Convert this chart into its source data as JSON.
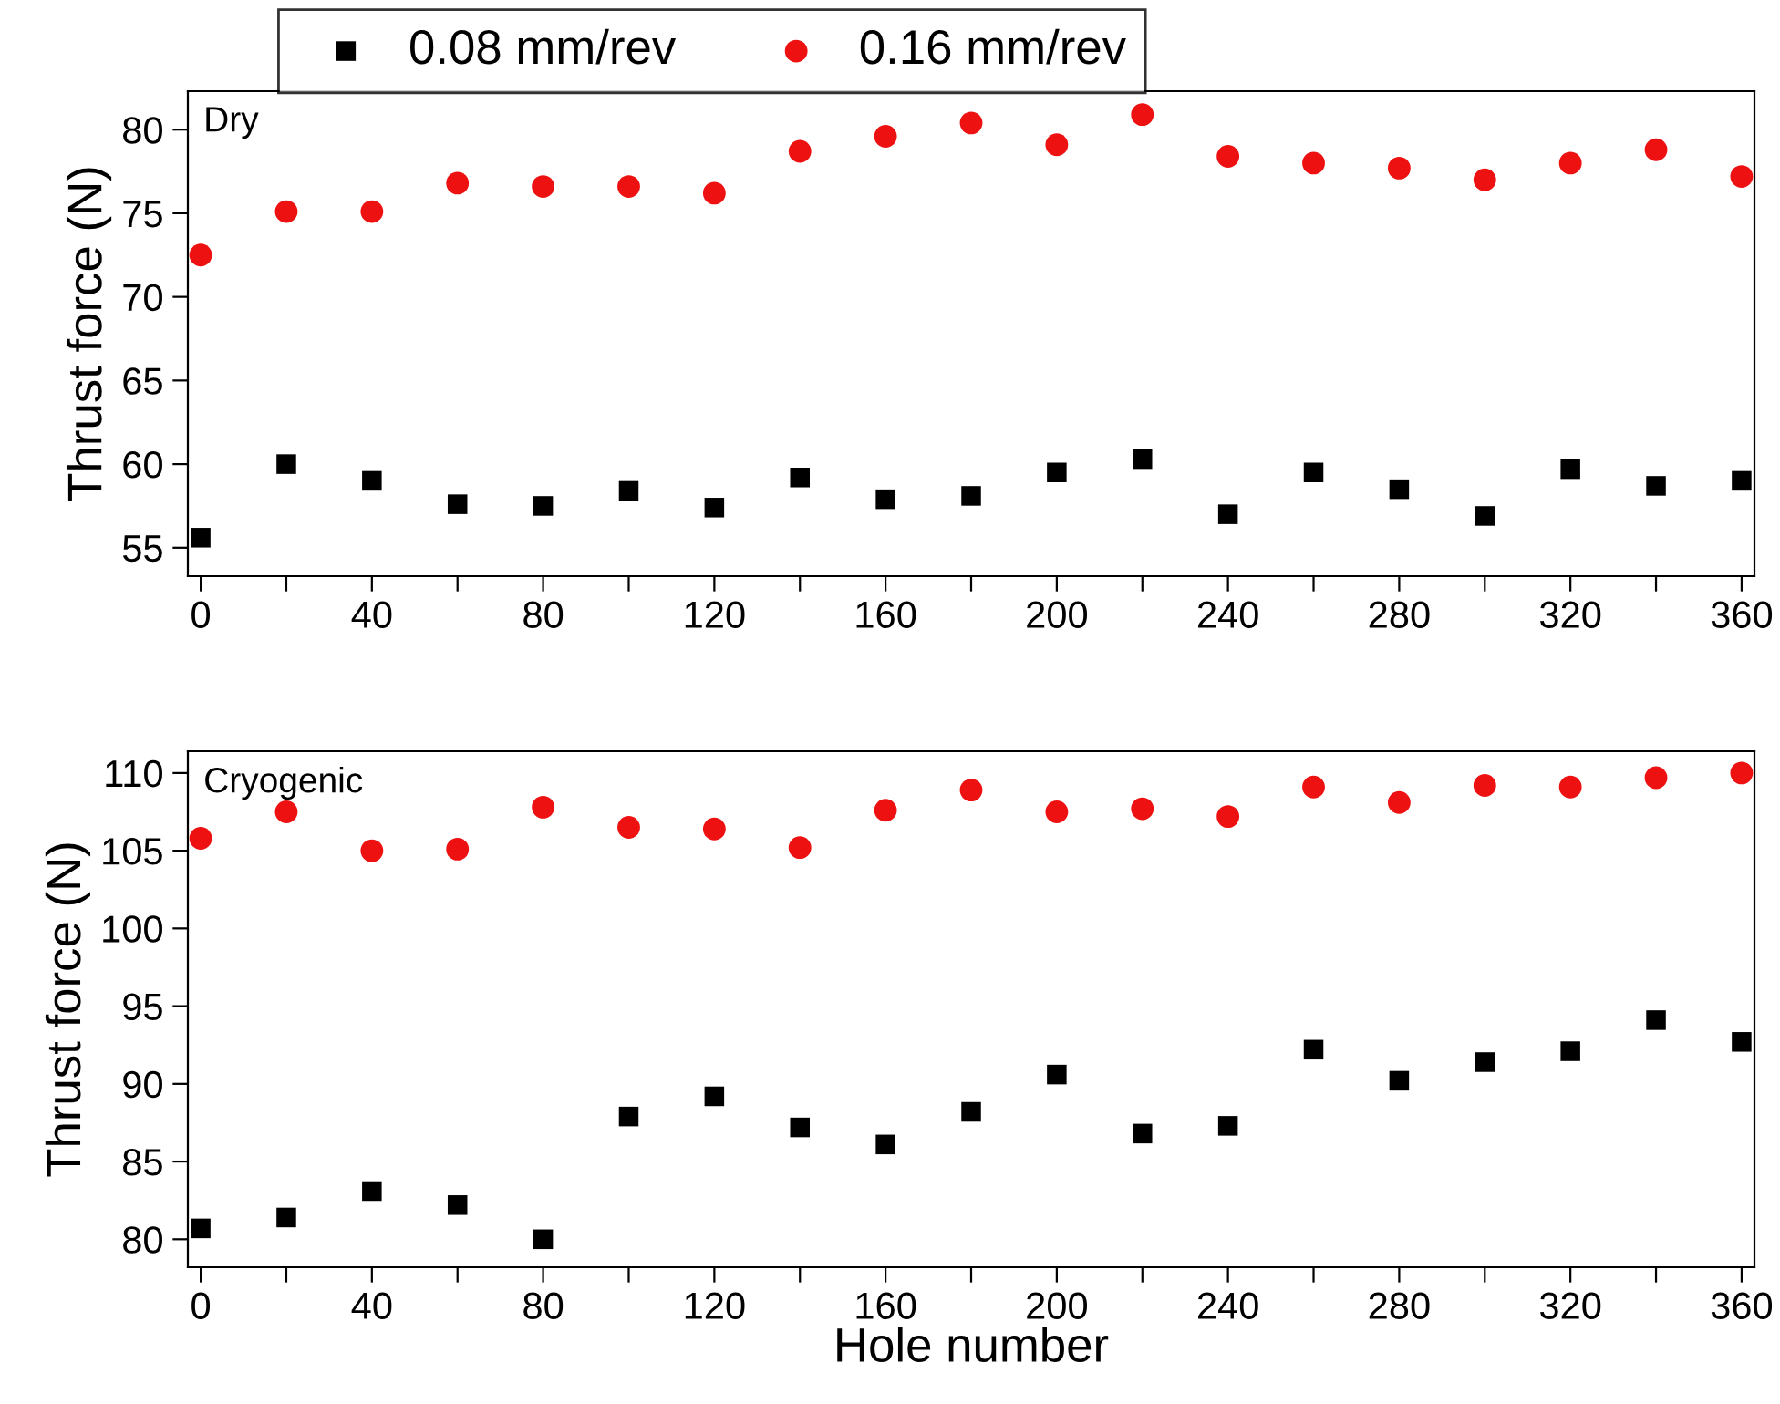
{
  "chart_data": [
    {
      "type": "scatter",
      "annotations": [
        "Dry"
      ],
      "ylabel": "Thrust force (N)",
      "x": [
        0,
        20,
        40,
        60,
        80,
        100,
        120,
        140,
        160,
        180,
        200,
        220,
        240,
        260,
        280,
        300,
        320,
        340,
        360
      ],
      "series": [
        {
          "name": "0.08 mm/rev",
          "color": "#000000",
          "marker": "square",
          "values": [
            55.6,
            60.0,
            59.0,
            57.6,
            57.5,
            58.4,
            57.4,
            59.2,
            57.9,
            58.1,
            59.5,
            60.3,
            57.0,
            59.5,
            58.5,
            56.9,
            59.7,
            58.7,
            59.0
          ]
        },
        {
          "name": "0.16 mm/rev",
          "color": "#ee1111",
          "marker": "circle",
          "values": [
            72.5,
            75.1,
            75.1,
            76.8,
            76.6,
            76.6,
            76.2,
            78.7,
            79.6,
            80.4,
            79.1,
            80.9,
            78.4,
            78.0,
            77.7,
            77.0,
            78.0,
            78.8,
            77.2
          ]
        }
      ],
      "xlim": [
        -3,
        363
      ],
      "ylim": [
        53.3,
        82.3
      ],
      "yticks": [
        55,
        60,
        65,
        70,
        75,
        80
      ],
      "xticks": [
        0,
        {
          "value": 20,
          "label": null
        },
        40,
        {
          "value": 60,
          "label": null
        },
        80,
        {
          "value": 100,
          "label": null
        },
        120,
        {
          "value": 140,
          "label": null
        },
        160,
        {
          "value": 180,
          "label": null
        },
        200,
        {
          "value": 220,
          "label": null
        },
        240,
        {
          "value": 260,
          "label": null
        },
        280,
        {
          "value": 300,
          "label": null
        },
        320,
        {
          "value": 340,
          "label": null
        },
        360
      ],
      "legend": "top",
      "grid": false
    },
    {
      "type": "scatter",
      "annotations": [
        "Cryogenic"
      ],
      "xlabel": "Hole number",
      "ylabel": "Thrust force (N)",
      "x": [
        0,
        20,
        40,
        60,
        80,
        100,
        120,
        140,
        160,
        180,
        200,
        220,
        240,
        260,
        280,
        300,
        320,
        340,
        360
      ],
      "series": [
        {
          "color": "#000000",
          "marker": "square",
          "values": [
            80.7,
            81.4,
            83.1,
            82.2,
            80.0,
            87.9,
            89.2,
            87.2,
            86.1,
            88.2,
            90.6,
            86.8,
            87.3,
            92.2,
            90.2,
            91.4,
            92.1,
            94.1,
            92.7
          ]
        },
        {
          "color": "#ee1111",
          "marker": "circle",
          "values": [
            105.8,
            107.5,
            105.0,
            105.1,
            107.8,
            106.5,
            106.4,
            105.2,
            107.6,
            108.9,
            107.5,
            107.7,
            107.2,
            109.1,
            108.1,
            109.2,
            109.1,
            109.7,
            110.0
          ]
        }
      ],
      "xlim": [
        -3,
        363
      ],
      "ylim": [
        78.2,
        111.4
      ],
      "yticks": [
        80,
        85,
        90,
        95,
        100,
        105,
        110
      ],
      "xticks": [
        0,
        {
          "value": 20,
          "label": null
        },
        40,
        {
          "value": 60,
          "label": null
        },
        80,
        {
          "value": 100,
          "label": null
        },
        120,
        {
          "value": 140,
          "label": null
        },
        160,
        {
          "value": 180,
          "label": null
        },
        200,
        {
          "value": 220,
          "label": null
        },
        240,
        {
          "value": 260,
          "label": null
        },
        280,
        {
          "value": 300,
          "label": null
        },
        320,
        {
          "value": 340,
          "label": null
        },
        360
      ],
      "grid": false
    }
  ]
}
